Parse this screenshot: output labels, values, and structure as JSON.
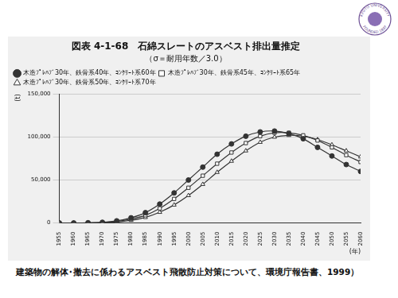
{
  "slide": {
    "logo": [
      "KYOTO UNIVERSITY",
      "FOUNDED 1897"
    ],
    "caption": "建築物の解体･撤去に係わるアスベスト飛散防止対策について、環境庁報告書、1999）"
  },
  "chart_data": {
    "type": "line",
    "title": "図表 4-1-68　石綿スレートのアスベスト排出量推定",
    "subtitle": "（σ＝耐用年数／3.0）",
    "x_label": "(年)",
    "y_label": "(t)",
    "x": [
      1955,
      1960,
      1965,
      1970,
      1975,
      1980,
      1985,
      1990,
      1995,
      2000,
      2005,
      2010,
      2015,
      2020,
      2025,
      2030,
      2035,
      2040,
      2045,
      2050,
      2055,
      2060
    ],
    "series": [
      {
        "name": "木造ﾌﾟﾚﾊﾌﾞ30年、鉄骨系40年、ｺﾝｸﾘｰﾄ系60年",
        "color": "#333333",
        "marker": "circle",
        "values": [
          0,
          0,
          200,
          800,
          2500,
          6000,
          12000,
          22000,
          35000,
          50000,
          65000,
          80000,
          92000,
          101000,
          106000,
          107000,
          104000,
          98000,
          88000,
          78000,
          68000,
          60000
        ]
      },
      {
        "name": "木造ﾌﾟﾚﾊﾌﾞ30年、鉄骨系45年、ｺﾝｸﾘｰﾄ系65年",
        "color": "#333333",
        "marker": "square",
        "values": [
          0,
          0,
          100,
          500,
          1800,
          4500,
          9000,
          17000,
          28000,
          41000,
          55000,
          69000,
          82000,
          93000,
          101000,
          105000,
          105000,
          102000,
          96000,
          88000,
          79000,
          71000
        ]
      },
      {
        "name": "木造ﾌﾟﾚﾊﾌﾞ30年、鉄骨系50年、ｺﾝｸﾘｰﾄ系70年",
        "color": "#333333",
        "marker": "triangle",
        "values": [
          0,
          0,
          50,
          300,
          1200,
          3200,
          6500,
          12500,
          21000,
          32000,
          45000,
          59000,
          72000,
          84000,
          94000,
          100000,
          102000,
          101000,
          97000,
          91000,
          84000,
          77000
        ]
      }
    ],
    "xlim": [
      1955,
      2060
    ],
    "xticks": [
      1955,
      1960,
      1965,
      1970,
      1975,
      1980,
      1985,
      1990,
      1995,
      2000,
      2005,
      2010,
      2015,
      2020,
      2025,
      2030,
      2035,
      2040,
      2045,
      2050,
      2055,
      2060
    ],
    "ylim": [
      0,
      150000
    ],
    "yticks": [
      0,
      {
        "value": 50000,
        "label": "50,000"
      },
      {
        "value": 100000,
        "label": "100,000"
      },
      {
        "value": 150000,
        "label": "150,000"
      }
    ],
    "grid": true,
    "legend": "upper left"
  }
}
